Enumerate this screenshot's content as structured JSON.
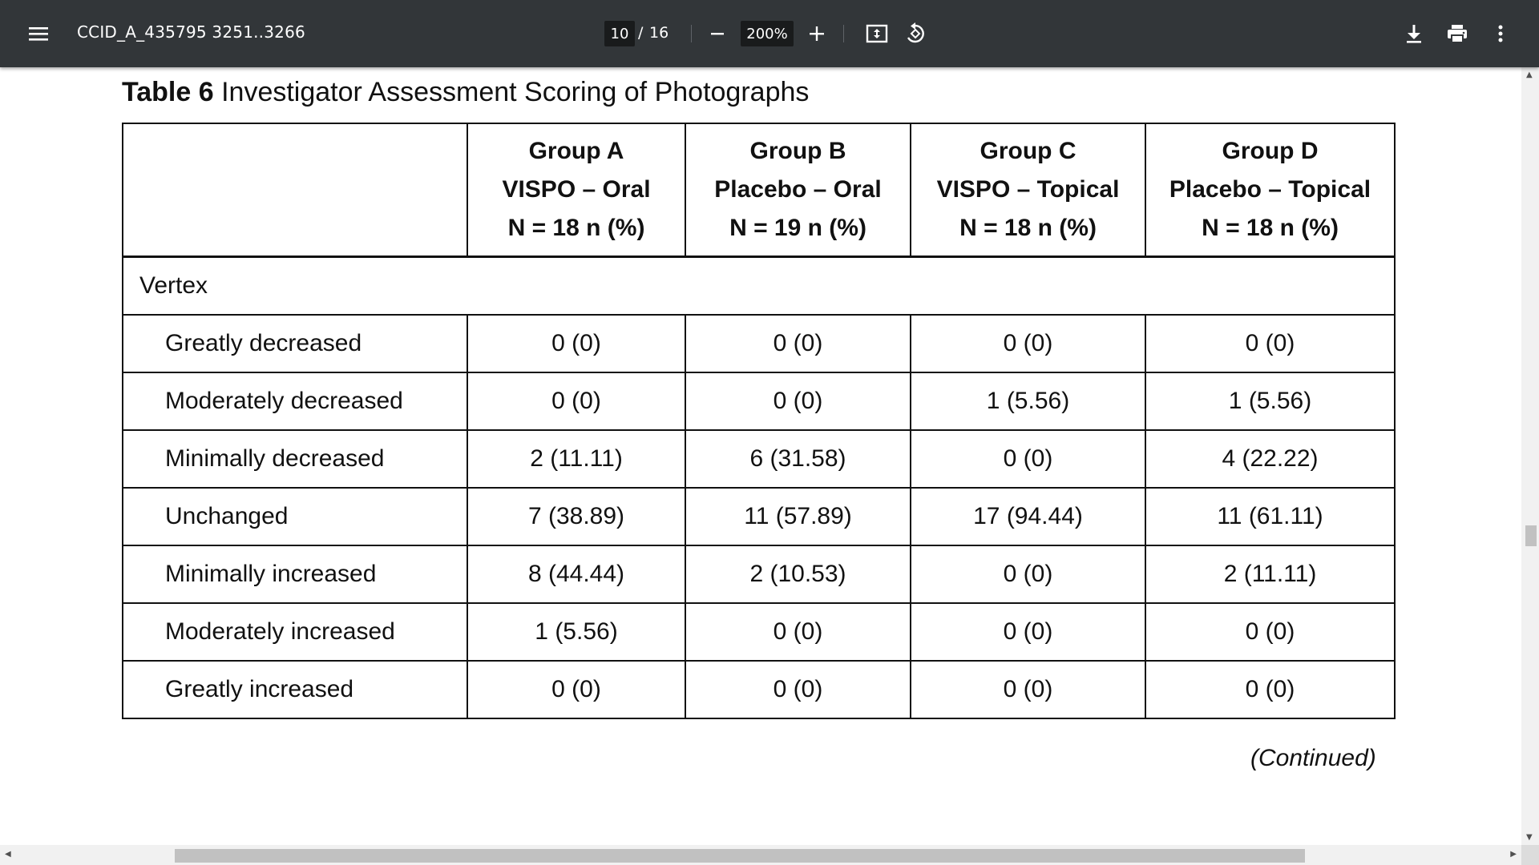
{
  "toolbar": {
    "menu_icon": "hamburger-menu-icon",
    "title": "CCID_A_435795 3251..3266",
    "page_current": "10",
    "page_separator": "/",
    "page_total": "16",
    "zoom_value": "200%",
    "icons": {
      "zoom_out": "minus-icon",
      "zoom_in": "plus-icon",
      "fit": "fit-to-page-icon",
      "rotate": "rotate-counterclockwise-icon",
      "download": "download-icon",
      "print": "print-icon",
      "more": "more-vertical-icon"
    },
    "background_color": "#323639"
  },
  "document": {
    "caption_number": "Table 6",
    "caption_text": "Investigator Assessment Scoring of Photographs",
    "columns": [
      {
        "group": "Group A",
        "treatment": "VISPO – Oral",
        "n": "N = 18 n (%)"
      },
      {
        "group": "Group B",
        "treatment": "Placebo – Oral",
        "n": "N = 19 n (%)"
      },
      {
        "group": "Group C",
        "treatment": "VISPO – Topical",
        "n": "N = 18 n (%)"
      },
      {
        "group": "Group D",
        "treatment": "Placebo – Topical",
        "n": "N = 18 n (%)"
      }
    ],
    "section_label": "Vertex",
    "rows": [
      {
        "label": "Greatly decreased",
        "values": [
          "0 (0)",
          "0 (0)",
          "0 (0)",
          "0 (0)"
        ]
      },
      {
        "label": "Moderately decreased",
        "values": [
          "0 (0)",
          "0 (0)",
          "1 (5.56)",
          "1 (5.56)"
        ]
      },
      {
        "label": "Minimally decreased",
        "values": [
          "2 (11.11)",
          "6 (31.58)",
          "0 (0)",
          "4 (22.22)"
        ]
      },
      {
        "label": "Unchanged",
        "values": [
          "7 (38.89)",
          "11 (57.89)",
          "17 (94.44)",
          "11 (61.11)"
        ]
      },
      {
        "label": "Minimally increased",
        "values": [
          "8 (44.44)",
          "2 (10.53)",
          "0 (0)",
          "2 (11.11)"
        ]
      },
      {
        "label": "Moderately increased",
        "values": [
          "1 (5.56)",
          "0 (0)",
          "0 (0)",
          "0 (0)"
        ]
      },
      {
        "label": "Greatly increased",
        "values": [
          "0 (0)",
          "0 (0)",
          "0 (0)",
          "0 (0)"
        ]
      }
    ],
    "continued_text": "(Continued)"
  },
  "scrollbars": {
    "vertical_position": 0.59,
    "horizontal_thumb_fraction": 0.74
  }
}
